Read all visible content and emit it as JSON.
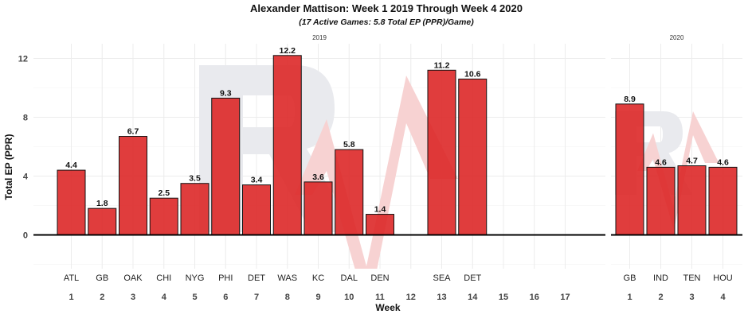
{
  "chart_data": {
    "type": "bar",
    "title": "Alexander Mattison: Week 1 2019 Through Week 4 2020",
    "subtitle": "(17 Active Games: 5.8 Total EP (PPR)/Game)",
    "xlabel": "Week",
    "ylabel": "Total EP (PPR)",
    "ylim": [
      -2.3,
      13.0
    ],
    "yticks": [
      0,
      4,
      8,
      12
    ],
    "grid": true,
    "panels": [
      {
        "name": "2019",
        "weeks": [
          1,
          2,
          3,
          4,
          5,
          6,
          7,
          8,
          9,
          10,
          11,
          12,
          13,
          14,
          15,
          16,
          17
        ],
        "bars": [
          {
            "week": 1,
            "opponent": "ATL",
            "value": 4.4,
            "label": "4.4"
          },
          {
            "week": 2,
            "opponent": "GB",
            "value": 1.8,
            "label": "1.8"
          },
          {
            "week": 3,
            "opponent": "OAK",
            "value": 6.7,
            "label": "6.7"
          },
          {
            "week": 4,
            "opponent": "CHI",
            "value": 2.5,
            "label": "2.5"
          },
          {
            "week": 5,
            "opponent": "NYG",
            "value": 3.5,
            "label": "3.5"
          },
          {
            "week": 6,
            "opponent": "PHI",
            "value": 9.3,
            "label": "9.3"
          },
          {
            "week": 7,
            "opponent": "DET",
            "value": 3.4,
            "label": "3.4"
          },
          {
            "week": 8,
            "opponent": "WAS",
            "value": 12.2,
            "label": "12.2"
          },
          {
            "week": 9,
            "opponent": "KC",
            "value": 3.6,
            "label": "3.6"
          },
          {
            "week": 10,
            "opponent": "DAL",
            "value": 5.8,
            "label": "5.8"
          },
          {
            "week": 11,
            "opponent": "DEN",
            "value": 1.4,
            "label": "1.4"
          },
          {
            "week": 13,
            "opponent": "SEA",
            "value": 11.2,
            "label": "11.2"
          },
          {
            "week": 14,
            "opponent": "DET",
            "value": 10.6,
            "label": "10.6"
          }
        ]
      },
      {
        "name": "2020",
        "weeks": [
          1,
          2,
          3,
          4
        ],
        "bars": [
          {
            "week": 1,
            "opponent": "GB",
            "value": 8.9,
            "label": "8.9"
          },
          {
            "week": 2,
            "opponent": "IND",
            "value": 4.6,
            "label": "4.6"
          },
          {
            "week": 3,
            "opponent": "TEN",
            "value": 4.7,
            "label": "4.7"
          },
          {
            "week": 4,
            "opponent": "HOU",
            "value": 4.6,
            "label": "4.6"
          }
        ]
      }
    ],
    "colors": {
      "bar": "#dc2222",
      "watermark_r": "#e9eaee",
      "watermark_arrow": "#f7d2d2"
    }
  }
}
